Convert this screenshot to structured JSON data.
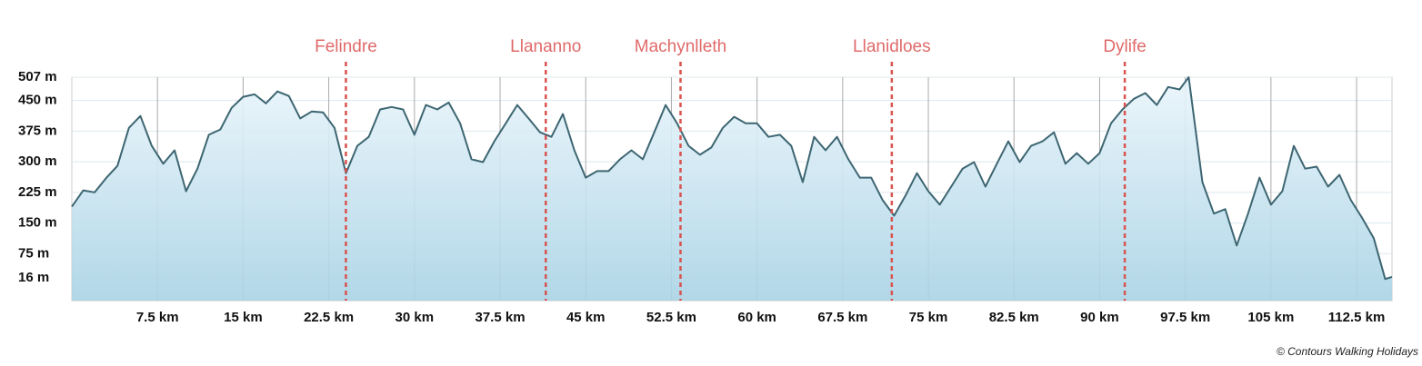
{
  "chart_data": {
    "type": "area",
    "x": [
      0,
      1,
      2,
      3,
      4,
      5,
      6,
      7,
      8,
      9,
      10,
      11,
      12,
      13,
      14,
      15,
      16,
      17,
      18,
      19,
      20,
      21,
      22,
      23,
      24,
      25,
      26,
      27,
      28,
      29,
      30,
      31,
      32,
      33,
      34,
      35,
      36,
      37,
      38,
      39,
      40,
      41,
      42,
      43,
      44,
      45,
      46,
      47,
      48,
      49,
      50,
      51,
      52,
      53,
      54,
      55,
      56,
      57,
      58,
      59,
      60,
      61,
      62,
      63,
      64,
      65,
      66,
      67,
      68,
      69,
      70,
      71,
      72,
      73,
      74,
      75,
      76,
      77,
      78,
      79,
      80,
      81,
      82,
      83,
      84,
      85,
      86,
      87,
      88,
      89,
      90,
      91,
      92,
      93,
      94,
      95,
      96,
      97,
      97.8,
      99,
      100,
      101,
      102,
      103,
      104,
      105,
      106,
      107,
      108,
      109,
      110,
      111,
      112,
      113,
      114,
      115,
      115.6
    ],
    "series": [
      {
        "color": "#3d6672",
        "values": [
          190,
          230,
          225,
          260,
          290,
          383,
          412,
          339,
          295,
          328,
          228,
          283,
          366,
          379,
          432,
          459,
          465,
          443,
          472,
          461,
          406,
          423,
          421,
          383,
          272,
          339,
          361,
          428,
          434,
          428,
          366,
          439,
          428,
          445,
          394,
          306,
          299,
          350,
          394,
          439,
          406,
          372,
          361,
          417,
          328,
          261,
          277,
          277,
          306,
          328,
          306,
          372,
          439,
          394,
          339,
          317,
          335,
          383,
          410,
          394,
          394,
          361,
          366,
          339,
          250,
          361,
          328,
          361,
          306,
          261,
          261,
          206,
          168,
          217,
          272,
          228,
          195,
          239,
          283,
          299,
          239,
          295,
          350,
          299,
          339,
          350,
          372,
          295,
          321,
          295,
          321,
          394,
          428,
          454,
          468,
          439,
          483,
          477,
          507,
          250,
          173,
          184,
          95,
          173,
          261,
          195,
          228,
          339,
          283,
          288,
          239,
          268,
          206,
          162,
          113,
          13,
          18
        ]
      }
    ],
    "xlim": [
      0,
      115.6
    ],
    "ylim": [
      -40,
      507
    ],
    "xticks": [
      {
        "value": 7.5,
        "label": "7.5 km"
      },
      {
        "value": 15,
        "label": "15 km"
      },
      {
        "value": 22.5,
        "label": "22.5 km"
      },
      {
        "value": 30,
        "label": "30 km"
      },
      {
        "value": 37.5,
        "label": "37.5 km"
      },
      {
        "value": 45,
        "label": "45 km"
      },
      {
        "value": 52.5,
        "label": "52.5 km"
      },
      {
        "value": 60,
        "label": "60 km"
      },
      {
        "value": 67.5,
        "label": "67.5 km"
      },
      {
        "value": 75,
        "label": "75 km"
      },
      {
        "value": 82.5,
        "label": "82.5 km"
      },
      {
        "value": 90,
        "label": "90 km"
      },
      {
        "value": 97.5,
        "label": "97.5 km"
      },
      {
        "value": 105,
        "label": "105 km"
      },
      {
        "value": 112.5,
        "label": "112.5 km"
      }
    ],
    "yticks": [
      {
        "value": 16,
        "label": "16 m"
      },
      {
        "value": 75,
        "label": "75 m"
      },
      {
        "value": 150,
        "label": "150 m"
      },
      {
        "value": 225,
        "label": "225 m"
      },
      {
        "value": 300,
        "label": "300 m"
      },
      {
        "value": 375,
        "label": "375 m"
      },
      {
        "value": 450,
        "label": "450 m"
      },
      {
        "value": 507,
        "label": "507 m"
      }
    ],
    "grid": true,
    "markers": [
      {
        "label": "Felindre",
        "x": 24
      },
      {
        "label": "Llananno",
        "x": 41.5
      },
      {
        "label": "Machynlleth",
        "x": 53.3
      },
      {
        "label": "Llanidloes",
        "x": 71.8
      },
      {
        "label": "Dylife",
        "x": 92.2
      }
    ],
    "marker_color": "#d9534f",
    "credit": "© Contours Walking Holidays"
  }
}
